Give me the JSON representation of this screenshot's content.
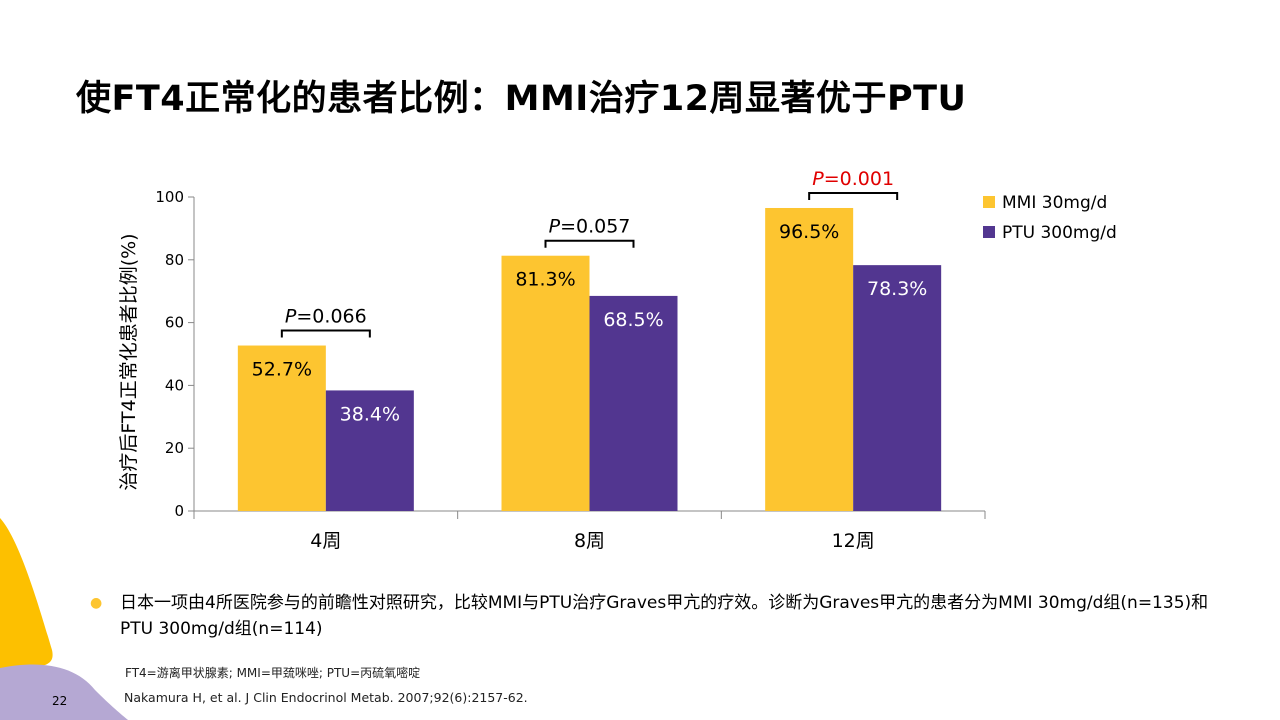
{
  "title": "使FT4正常化的患者比例：MMI治疗12周显著优于PTU",
  "chart_data": {
    "type": "bar",
    "title": "",
    "xlabel": "",
    "ylabel": "治疗后FT4正常化患者比例(%)",
    "ylim": [
      0,
      100
    ],
    "yticks": [
      0,
      20,
      40,
      60,
      80,
      100
    ],
    "categories": [
      "4周",
      "8周",
      "12周"
    ],
    "series": [
      {
        "name": "MMI 30mg/d",
        "color": "#FDC530",
        "values": [
          52.7,
          81.3,
          96.5
        ],
        "labels": [
          "52.7%",
          "81.3%",
          "96.5%"
        ]
      },
      {
        "name": "PTU 300mg/d",
        "color": "#523690",
        "values": [
          38.4,
          68.5,
          78.3
        ],
        "labels": [
          "38.4%",
          "68.5%",
          "78.3%"
        ]
      }
    ],
    "p_values": [
      {
        "prefix": "P",
        "value": "=0.066",
        "color": "#000000"
      },
      {
        "prefix": "P",
        "value": "=0.057",
        "color": "#000000"
      },
      {
        "prefix": "P",
        "value": "=0.001",
        "color": "#E00000"
      }
    ],
    "legend_position": "top-right",
    "grid": false
  },
  "bullet": "日本一项由4所医院参与的前瞻性对照研究，比较MMI与PTU治疗Graves甲亢的疗效。诊断为Graves甲亢的患者分为MMI 30mg/d组(n=135)和PTU 300mg/d组(n=114)",
  "abbreviations": "FT4=游离甲状腺素; MMI=甲巯咪唑; PTU=丙硫氧嘧啶",
  "reference": "Nakamura H, et al. J Clin Endocrinol Metab. 2007;92(6):2157-62.",
  "page_number": "22"
}
